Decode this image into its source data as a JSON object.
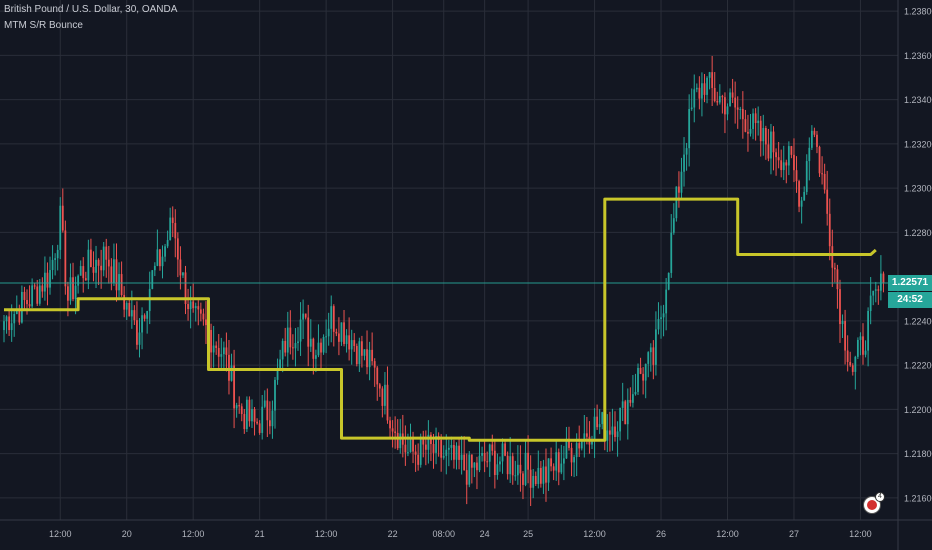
{
  "header": {
    "symbol_line": "British Pound / U.S. Dollar, 30, OANDA",
    "indicator_name": "MTM S/R Bounce"
  },
  "price_tag": {
    "last_price": "1.22571",
    "countdown": "24:52"
  },
  "event_badge": {
    "icon": "us-flag-icon",
    "count": "4"
  },
  "colors": {
    "background": "#131722",
    "grid": "#2a2e39",
    "up": "#26a69a",
    "down": "#ef5350",
    "sr_line": "#c8c62a",
    "last_price_line": "#26a69a"
  },
  "chart_data": {
    "type": "candlestick",
    "title": "",
    "ylim": [
      1.215,
      1.2385
    ],
    "y_ticks": [
      "1.23800",
      "1.23600",
      "1.23400",
      "1.23200",
      "1.23000",
      "1.22800",
      "1.22400",
      "1.22200",
      "1.22000",
      "1.21800",
      "1.21600"
    ],
    "x_ticks": [
      "12:00",
      "20",
      "12:00",
      "21",
      "12:00",
      "22",
      "08:00",
      "24",
      "25",
      "12:00",
      "26",
      "12:00",
      "27",
      "12:00"
    ],
    "x_tick_bar_index": [
      22,
      48,
      74,
      100,
      126,
      152,
      172,
      188,
      205,
      231,
      257,
      283,
      309,
      335
    ],
    "bar_count": 345,
    "last_price": 1.22571,
    "price_path": [
      [
        0,
        1.224
      ],
      [
        10,
        1.225
      ],
      [
        18,
        1.2262
      ],
      [
        22,
        1.2285
      ],
      [
        25,
        1.225
      ],
      [
        30,
        1.2262
      ],
      [
        40,
        1.227
      ],
      [
        45,
        1.2255
      ],
      [
        52,
        1.2235
      ],
      [
        58,
        1.226
      ],
      [
        62,
        1.227
      ],
      [
        66,
        1.2285
      ],
      [
        70,
        1.2258
      ],
      [
        74,
        1.224
      ],
      [
        80,
        1.2235
      ],
      [
        86,
        1.2225
      ],
      [
        92,
        1.22
      ],
      [
        98,
        1.2193
      ],
      [
        104,
        1.22
      ],
      [
        110,
        1.223
      ],
      [
        116,
        1.224
      ],
      [
        122,
        1.2228
      ],
      [
        128,
        1.2242
      ],
      [
        134,
        1.2235
      ],
      [
        140,
        1.2225
      ],
      [
        146,
        1.2215
      ],
      [
        152,
        1.2195
      ],
      [
        158,
        1.218
      ],
      [
        166,
        1.2182
      ],
      [
        174,
        1.2178
      ],
      [
        182,
        1.2172
      ],
      [
        190,
        1.2178
      ],
      [
        198,
        1.2176
      ],
      [
        206,
        1.2172
      ],
      [
        212,
        1.217
      ],
      [
        218,
        1.2178
      ],
      [
        224,
        1.2185
      ],
      [
        230,
        1.2193
      ],
      [
        236,
        1.2192
      ],
      [
        242,
        1.2198
      ],
      [
        248,
        1.2215
      ],
      [
        254,
        1.2222
      ],
      [
        258,
        1.225
      ],
      [
        262,
        1.2285
      ],
      [
        266,
        1.2318
      ],
      [
        270,
        1.234
      ],
      [
        274,
        1.2348
      ],
      [
        278,
        1.2342
      ],
      [
        284,
        1.2338
      ],
      [
        290,
        1.2332
      ],
      [
        296,
        1.2322
      ],
      [
        302,
        1.2318
      ],
      [
        308,
        1.231
      ],
      [
        312,
        1.2295
      ],
      [
        316,
        1.233
      ],
      [
        320,
        1.2305
      ],
      [
        324,
        1.2272
      ],
      [
        328,
        1.2238
      ],
      [
        332,
        1.2218
      ],
      [
        336,
        1.223
      ],
      [
        340,
        1.2248
      ],
      [
        344,
        1.2257
      ]
    ],
    "series": [
      {
        "type": "step_line",
        "points": [
          [
            0,
            1.2245
          ],
          [
            29,
            1.2245
          ],
          [
            29,
            1.225
          ],
          [
            80,
            1.225
          ],
          [
            80,
            1.2218
          ],
          [
            132,
            1.2218
          ],
          [
            132,
            1.2187
          ],
          [
            182,
            1.2187
          ],
          [
            182,
            1.2186
          ],
          [
            235,
            1.2186
          ],
          [
            235,
            1.2295
          ],
          [
            287,
            1.2295
          ],
          [
            287,
            1.227
          ],
          [
            339,
            1.227
          ],
          [
            341,
            1.2272
          ]
        ]
      }
    ],
    "grid": true,
    "legend": "top-left"
  }
}
